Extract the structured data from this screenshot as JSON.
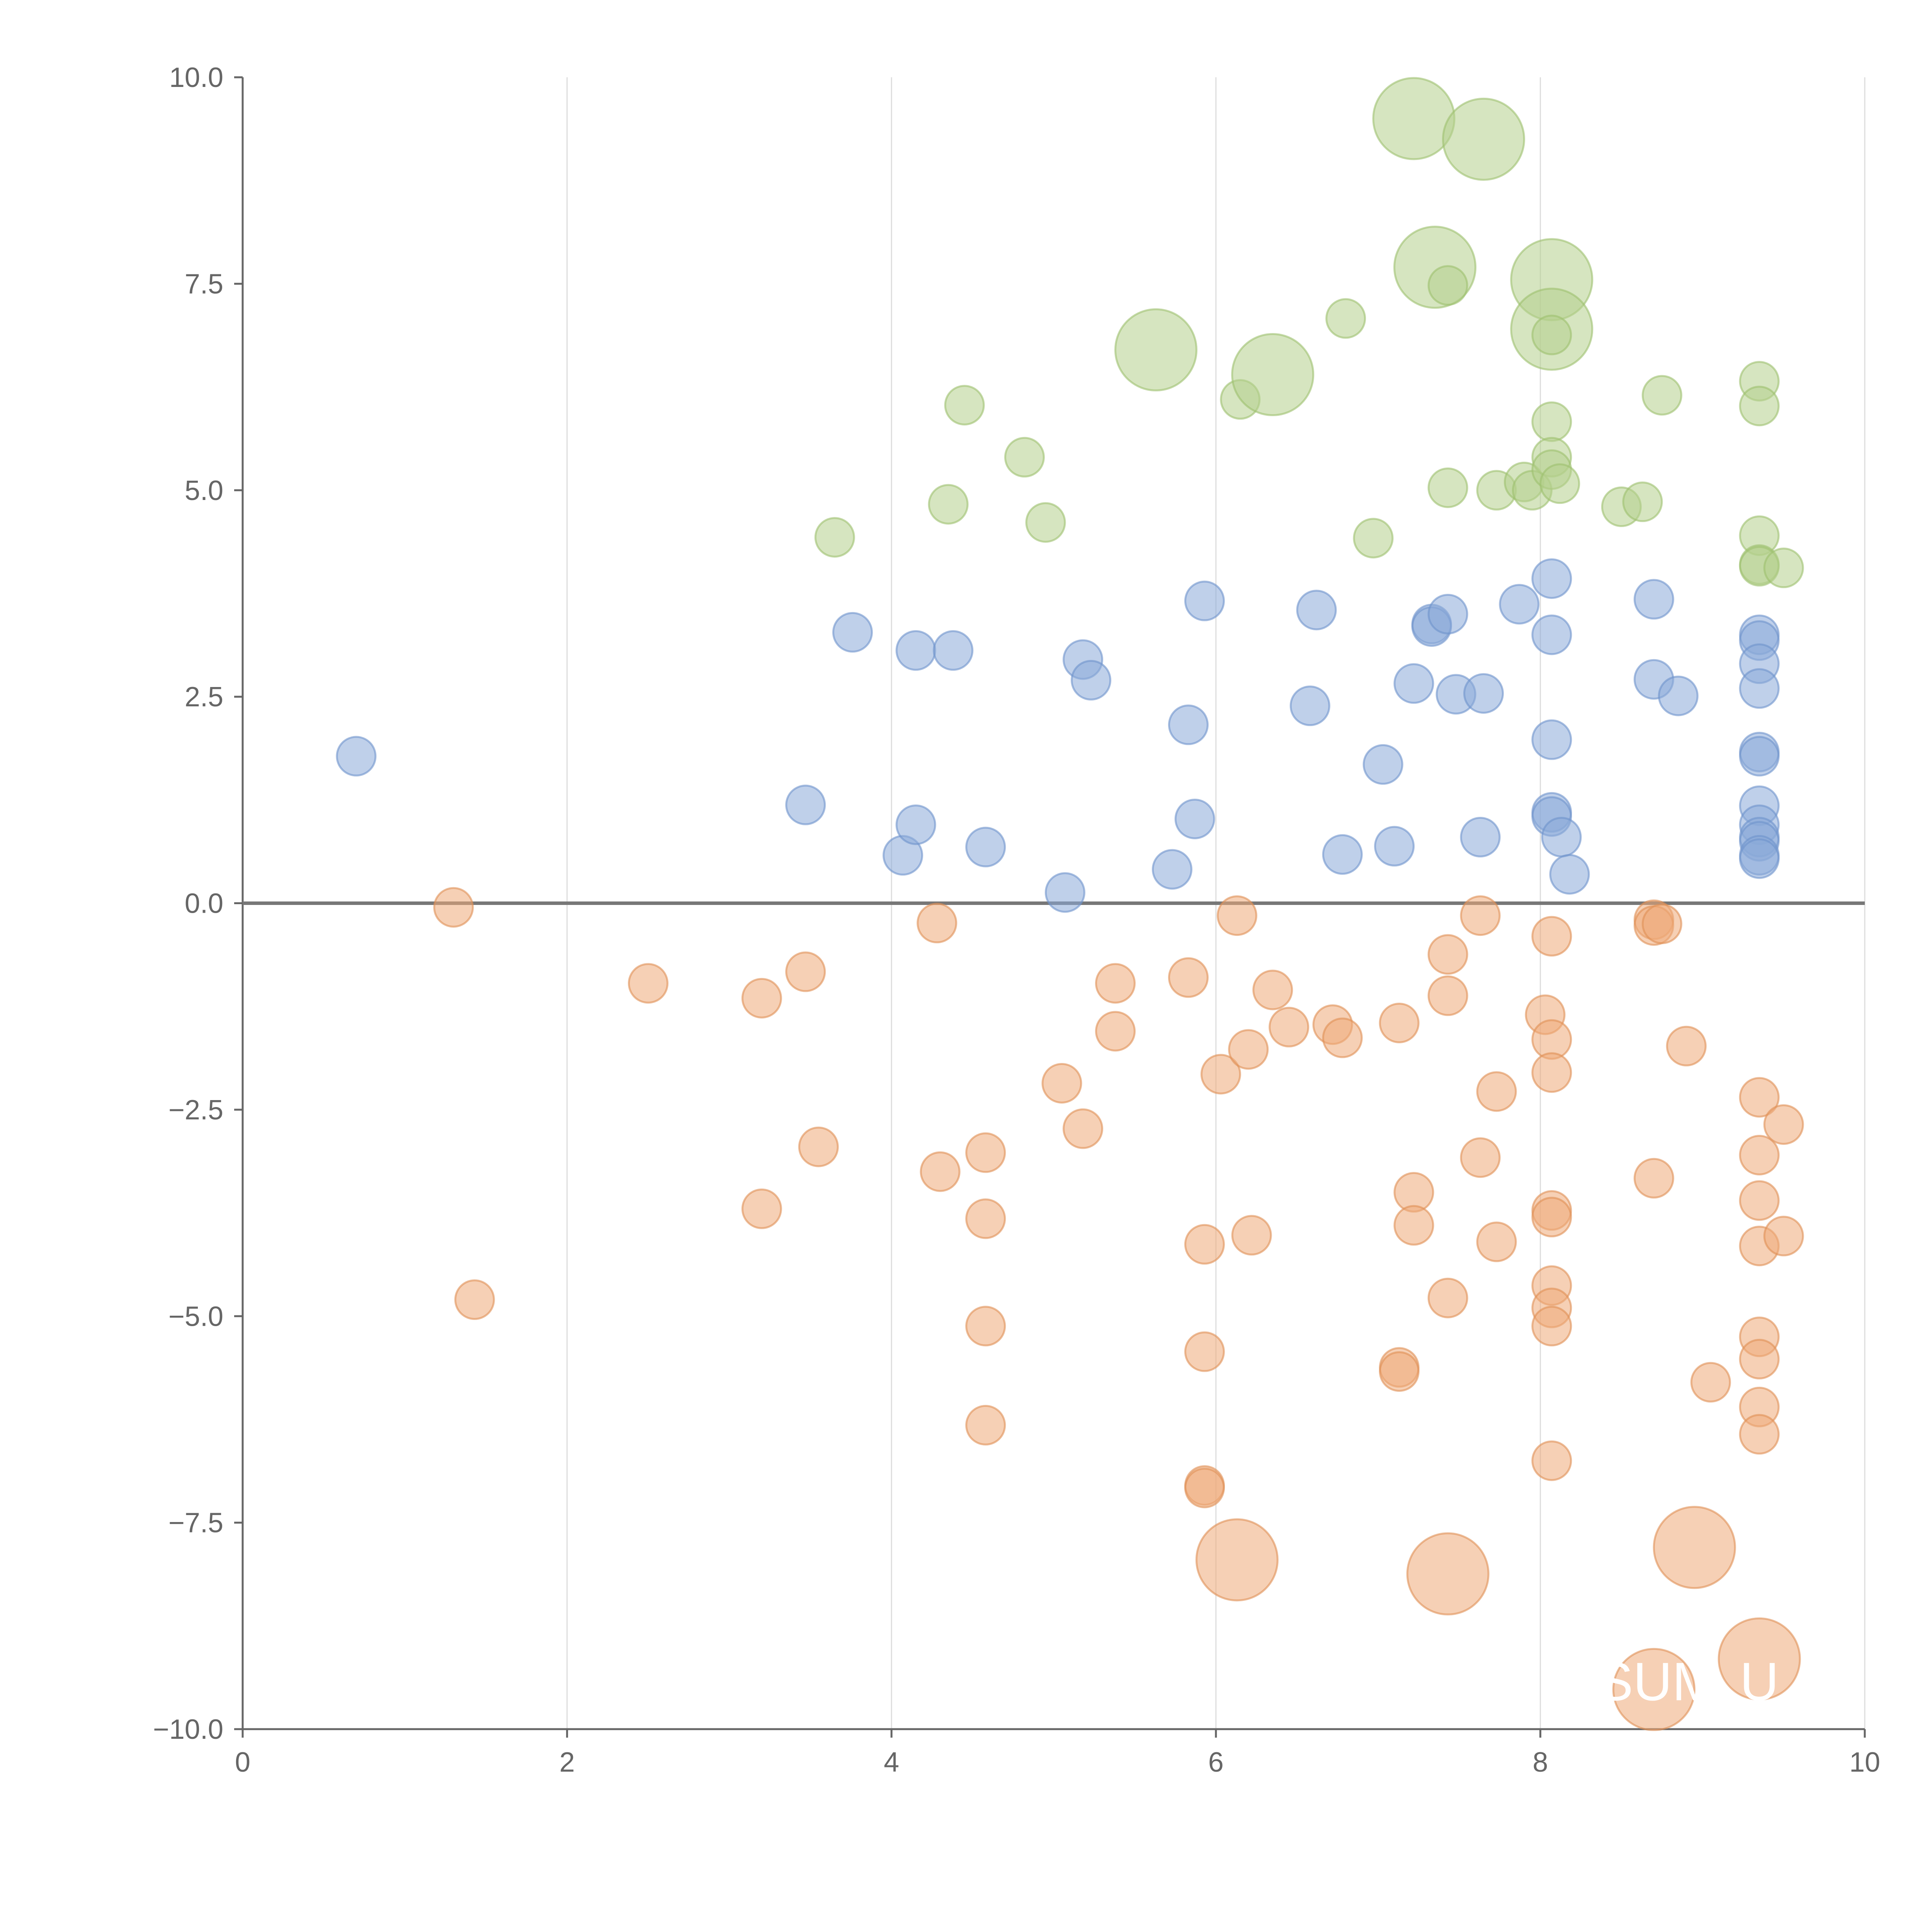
{
  "chart_data": {
    "type": "scatter",
    "title": "",
    "xlabel": "",
    "ylabel": "",
    "xlim": [
      0,
      10
    ],
    "ylim": [
      -10,
      10
    ],
    "grid": "vertical",
    "x_ticks": [
      "0",
      "2",
      "4",
      "6",
      "8",
      "10"
    ],
    "x_tick_values": [
      0,
      2,
      4,
      6,
      8,
      10
    ],
    "y_ticks": [
      "10.0",
      "7.5",
      "5.0",
      "2.5",
      "0.0",
      "−2.5",
      "−5.0",
      "−7.5",
      "−10.0"
    ],
    "y_tick_values": [
      10,
      7.5,
      5,
      2.5,
      0,
      -2.5,
      -5,
      -7.5,
      -10
    ],
    "colors": {
      "green": "#b5d08c",
      "green_stroke": "#9cbf6e",
      "blue": "#8aa9d8",
      "blue_stroke": "#6e92cc",
      "orange": "#eeaa78",
      "orange_stroke": "#e08f55"
    },
    "series": [
      {
        "name": "green",
        "color": "green",
        "points": [
          [
            3.65,
            4.43,
            1
          ],
          [
            4.45,
            6.03,
            1
          ],
          [
            4.35,
            4.83,
            1
          ],
          [
            4.82,
            5.4,
            1
          ],
          [
            4.95,
            4.61,
            1
          ],
          [
            5.63,
            6.7,
            2.1
          ],
          [
            6.15,
            6.1,
            1
          ],
          [
            6.35,
            6.4,
            2.1
          ],
          [
            6.8,
            7.08,
            1
          ],
          [
            6.97,
            4.42,
            1
          ],
          [
            7.22,
            9.5,
            2.1
          ],
          [
            7.35,
            7.7,
            2.1
          ],
          [
            7.43,
            7.48,
            1
          ],
          [
            7.43,
            5.03,
            1
          ],
          [
            7.65,
            9.25,
            2.1
          ],
          [
            7.73,
            5.0,
            1
          ],
          [
            7.9,
            5.1,
            1
          ],
          [
            7.95,
            5.0,
            1
          ],
          [
            8.07,
            7.55,
            2.1
          ],
          [
            8.07,
            6.95,
            2.1
          ],
          [
            8.07,
            6.88,
            1
          ],
          [
            8.07,
            5.83,
            1
          ],
          [
            8.07,
            5.4,
            1
          ],
          [
            8.07,
            5.25,
            1
          ],
          [
            8.12,
            5.08,
            1
          ],
          [
            8.5,
            4.8,
            1
          ],
          [
            8.63,
            4.86,
            1
          ],
          [
            8.75,
            6.15,
            1
          ],
          [
            9.35,
            6.32,
            1
          ],
          [
            9.35,
            6.02,
            1
          ],
          [
            9.35,
            4.45,
            1
          ],
          [
            9.35,
            4.1,
            1
          ],
          [
            9.35,
            4.08,
            1
          ],
          [
            9.5,
            4.06,
            1
          ]
        ]
      },
      {
        "name": "blue",
        "color": "blue",
        "points": [
          [
            0.7,
            1.78,
            1
          ],
          [
            3.47,
            1.19,
            1
          ],
          [
            3.76,
            3.28,
            1
          ],
          [
            4.07,
            0.58,
            1
          ],
          [
            4.15,
            0.95,
            1
          ],
          [
            4.15,
            3.06,
            1
          ],
          [
            4.38,
            3.06,
            1
          ],
          [
            4.58,
            0.68,
            1
          ],
          [
            5.07,
            0.13,
            1
          ],
          [
            5.18,
            2.95,
            1
          ],
          [
            5.23,
            2.7,
            1
          ],
          [
            5.73,
            0.41,
            1
          ],
          [
            5.83,
            2.16,
            1
          ],
          [
            5.87,
            1.02,
            1
          ],
          [
            5.93,
            3.66,
            1
          ],
          [
            6.58,
            2.39,
            1
          ],
          [
            6.62,
            3.55,
            1
          ],
          [
            6.78,
            0.59,
            1
          ],
          [
            7.03,
            1.68,
            1
          ],
          [
            7.1,
            0.69,
            1
          ],
          [
            7.22,
            2.66,
            1
          ],
          [
            7.33,
            3.38,
            1
          ],
          [
            7.33,
            3.35,
            1
          ],
          [
            7.43,
            3.5,
            1
          ],
          [
            7.48,
            2.53,
            1
          ],
          [
            7.63,
            0.8,
            1
          ],
          [
            7.65,
            2.54,
            1
          ],
          [
            7.87,
            3.62,
            1
          ],
          [
            8.07,
            3.93,
            1
          ],
          [
            8.07,
            3.25,
            1
          ],
          [
            8.07,
            1.98,
            1
          ],
          [
            8.07,
            1.1,
            1
          ],
          [
            8.07,
            1.05,
            1
          ],
          [
            8.13,
            0.8,
            1
          ],
          [
            8.18,
            0.35,
            1
          ],
          [
            8.7,
            3.68,
            1
          ],
          [
            8.7,
            2.71,
            1
          ],
          [
            8.85,
            2.51,
            1
          ],
          [
            9.35,
            3.25,
            1
          ],
          [
            9.35,
            3.18,
            1
          ],
          [
            9.35,
            2.9,
            1
          ],
          [
            9.35,
            2.6,
            1
          ],
          [
            9.35,
            1.83,
            1
          ],
          [
            9.35,
            1.78,
            1
          ],
          [
            9.35,
            1.18,
            1
          ],
          [
            9.35,
            0.95,
            1
          ],
          [
            9.35,
            0.8,
            1
          ],
          [
            9.35,
            0.75,
            1
          ],
          [
            9.35,
            0.58,
            1
          ],
          [
            9.35,
            0.54,
            1
          ]
        ]
      },
      {
        "name": "orange",
        "color": "orange",
        "points": [
          [
            1.3,
            -0.05,
            1
          ],
          [
            1.43,
            -4.8,
            1
          ],
          [
            2.5,
            -0.97,
            1
          ],
          [
            3.2,
            -1.15,
            1
          ],
          [
            3.2,
            -3.7,
            1
          ],
          [
            3.47,
            -0.83,
            1
          ],
          [
            3.55,
            -2.95,
            1
          ],
          [
            4.28,
            -0.24,
            1
          ],
          [
            4.3,
            -3.25,
            1
          ],
          [
            4.58,
            -3.02,
            1
          ],
          [
            4.58,
            -3.82,
            1
          ],
          [
            4.58,
            -5.12,
            1
          ],
          [
            4.58,
            -6.32,
            1
          ],
          [
            5.05,
            -2.18,
            1
          ],
          [
            5.18,
            -2.73,
            1
          ],
          [
            5.38,
            -0.97,
            1
          ],
          [
            5.38,
            -1.55,
            1
          ],
          [
            5.83,
            -0.9,
            1
          ],
          [
            5.93,
            -4.13,
            1
          ],
          [
            5.93,
            -5.43,
            1
          ],
          [
            5.93,
            -7.05,
            1
          ],
          [
            5.93,
            -7.08,
            1
          ],
          [
            6.03,
            -2.07,
            1
          ],
          [
            6.13,
            -0.15,
            1
          ],
          [
            6.13,
            -7.95,
            2.1
          ],
          [
            6.2,
            -1.77,
            1
          ],
          [
            6.22,
            -4.02,
            1
          ],
          [
            6.35,
            -1.05,
            1
          ],
          [
            6.45,
            -1.5,
            1
          ],
          [
            6.72,
            -1.47,
            1
          ],
          [
            6.78,
            -1.63,
            1
          ],
          [
            7.13,
            -1.45,
            1
          ],
          [
            7.13,
            -5.62,
            1
          ],
          [
            7.13,
            -5.67,
            1
          ],
          [
            7.22,
            -3.5,
            1
          ],
          [
            7.22,
            -3.9,
            1
          ],
          [
            7.43,
            -0.62,
            1
          ],
          [
            7.43,
            -1.12,
            1
          ],
          [
            7.43,
            -4.78,
            1
          ],
          [
            7.43,
            -8.12,
            2.1
          ],
          [
            7.63,
            -0.15,
            1
          ],
          [
            7.63,
            -3.08,
            1
          ],
          [
            7.73,
            -2.28,
            1
          ],
          [
            7.73,
            -4.1,
            1
          ],
          [
            8.03,
            -1.35,
            1
          ],
          [
            8.07,
            -0.4,
            1
          ],
          [
            8.07,
            -1.65,
            1
          ],
          [
            8.07,
            -2.05,
            1
          ],
          [
            8.07,
            -3.72,
            1
          ],
          [
            8.07,
            -3.8,
            1
          ],
          [
            8.07,
            -4.63,
            1
          ],
          [
            8.07,
            -4.9,
            1
          ],
          [
            8.07,
            -5.12,
            1
          ],
          [
            8.07,
            -6.75,
            1
          ],
          [
            8.7,
            -0.2,
            1
          ],
          [
            8.7,
            -0.27,
            1
          ],
          [
            8.75,
            -0.25,
            1
          ],
          [
            8.7,
            -3.33,
            1
          ],
          [
            8.7,
            -9.52,
            2.1
          ],
          [
            8.9,
            -1.73,
            1
          ],
          [
            8.95,
            -7.8,
            2.1
          ],
          [
            9.05,
            -5.8,
            1
          ],
          [
            9.35,
            -2.35,
            1
          ],
          [
            9.35,
            -3.05,
            1
          ],
          [
            9.35,
            -3.6,
            1
          ],
          [
            9.35,
            -4.15,
            1
          ],
          [
            9.35,
            -5.25,
            1
          ],
          [
            9.35,
            -5.52,
            1
          ],
          [
            9.35,
            -6.1,
            1
          ],
          [
            9.35,
            -6.43,
            1
          ],
          [
            9.35,
            -9.15,
            2.1
          ],
          [
            9.5,
            -2.68,
            1
          ],
          [
            9.5,
            -4.03,
            1
          ]
        ]
      }
    ],
    "annotations": [
      {
        "text": "SUM",
        "x": 8.72,
        "y": -9.65
      },
      {
        "text": "U",
        "x": 9.35,
        "y": -9.65
      }
    ]
  }
}
